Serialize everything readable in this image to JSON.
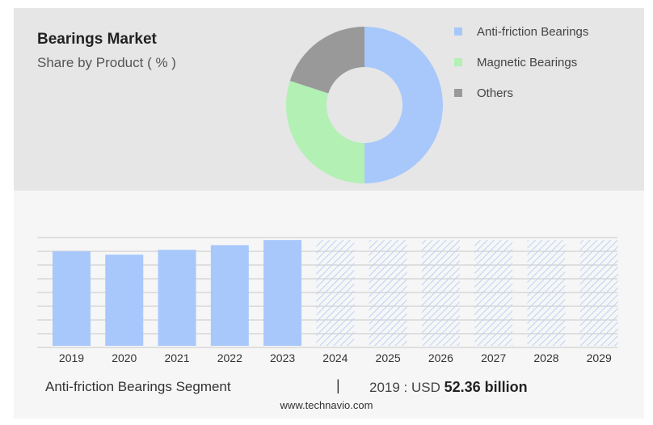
{
  "title": "Bearings Market",
  "subtitle": "Share by Product ( % )",
  "colors": {
    "anti_friction": "#a8c8fb",
    "magnetic": "#b2f0b4",
    "others": "#999999",
    "forecast_hatch": "#bcd2f4"
  },
  "chart_data": [
    {
      "type": "pie",
      "variant": "donut",
      "legend_position": "top-right",
      "slices": [
        {
          "name": "Anti-friction Bearings",
          "value": 50,
          "color": "#a8c8fb"
        },
        {
          "name": "Magnetic Bearings",
          "value": 30,
          "color": "#b2f0b4"
        },
        {
          "name": "Others",
          "value": 20,
          "color": "#999999"
        }
      ]
    },
    {
      "type": "bar",
      "categories": [
        "2019",
        "2020",
        "2021",
        "2022",
        "2023",
        "2024",
        "2025",
        "2026",
        "2027",
        "2028",
        "2029"
      ],
      "values": [
        52.36,
        50.5,
        53.2,
        55.8,
        58.6,
        58.6,
        58.6,
        58.6,
        58.6,
        58.6,
        58.6
      ],
      "forecast_from": "2024",
      "grid": true,
      "ylim": [
        0,
        60
      ]
    }
  ],
  "footer": {
    "segment": "Anti-friction Bearings Segment",
    "separator": "|",
    "year_label": "2019 : USD",
    "value": "52.36 billion"
  },
  "website": "www.technavio.com"
}
